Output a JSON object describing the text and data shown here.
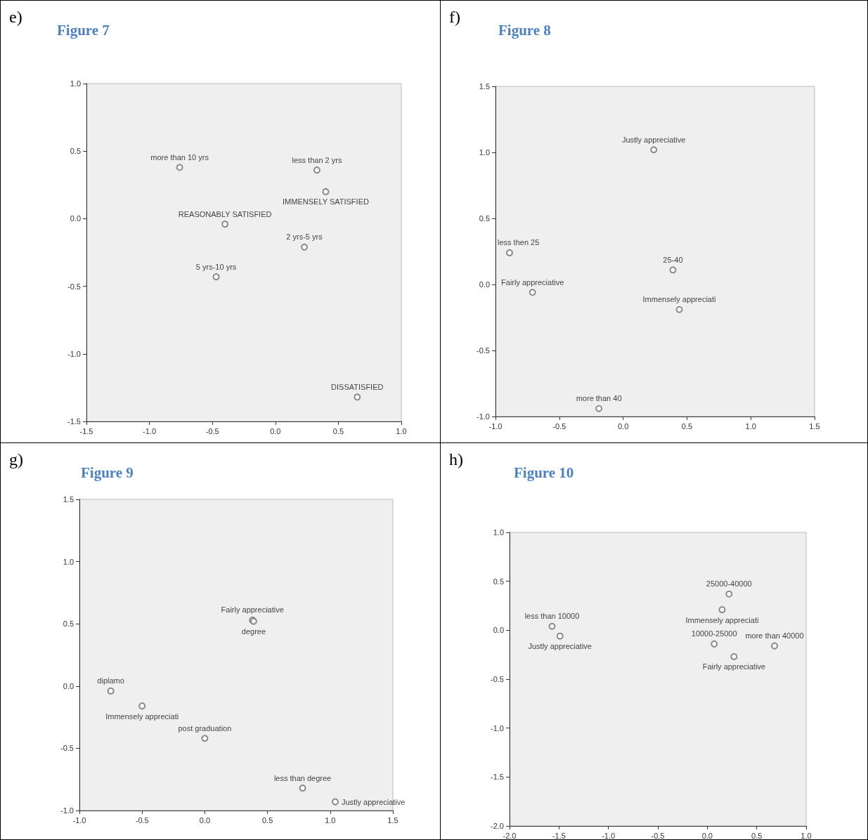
{
  "chart_data": [
    {
      "type": "scatter",
      "title": "Figure 7",
      "annotations": [
        "e)"
      ],
      "marker": "circle",
      "xlim": [
        -1.5,
        1.0
      ],
      "ylim": [
        -1.5,
        1.0
      ],
      "xticks": [
        {
          "value": -1.5,
          "label": "-1.5"
        },
        {
          "value": -1,
          "label": "-1.0"
        },
        {
          "value": -0.5,
          "label": "-0.5"
        },
        {
          "value": 0,
          "label": "0.0"
        },
        {
          "value": 0.5,
          "label": "0.5"
        },
        {
          "value": 1,
          "label": "1.0"
        }
      ],
      "yticks": [
        {
          "value": -1.5,
          "label": "-1.5"
        },
        {
          "value": -1,
          "label": "-1.0"
        },
        {
          "value": -0.5,
          "label": "-0.5"
        },
        {
          "value": 0,
          "label": "0.0"
        },
        {
          "value": 0.5,
          "label": "0.5"
        },
        {
          "value": 1,
          "label": "1.0"
        }
      ],
      "series": [
        {
          "name": "more than 10 yrs",
          "color": "#707070",
          "x": [
            -0.76
          ],
          "values": [
            0.38
          ]
        },
        {
          "name": "less than 2 yrs",
          "color": "#707070",
          "x": [
            0.33
          ],
          "values": [
            0.36
          ]
        },
        {
          "name": "IMMENSELY SATISFIED",
          "color": "#707070",
          "x": [
            0.4
          ],
          "values": [
            0.2
          ]
        },
        {
          "name": "REASONABLY SATISFIED",
          "color": "#707070",
          "x": [
            -0.4
          ],
          "values": [
            -0.04
          ]
        },
        {
          "name": "2 yrs-5 yrs",
          "color": "#707070",
          "x": [
            0.23
          ],
          "values": [
            -0.21
          ]
        },
        {
          "name": "5 yrs-10 yrs",
          "color": "#707070",
          "x": [
            -0.47
          ],
          "values": [
            -0.43
          ]
        },
        {
          "name": "DISSATISFIED",
          "color": "#707070",
          "x": [
            0.65
          ],
          "values": [
            -1.32
          ]
        }
      ]
    },
    {
      "type": "scatter",
      "title": "Figure 8",
      "annotations": [
        "f)"
      ],
      "marker": "circle",
      "xlim": [
        -1.0,
        1.5
      ],
      "ylim": [
        -1.0,
        1.5
      ],
      "xticks": [
        {
          "value": -1,
          "label": "-1.0"
        },
        {
          "value": -0.5,
          "label": "-0.5"
        },
        {
          "value": 0,
          "label": "0.0"
        },
        {
          "value": 0.5,
          "label": "0.5"
        },
        {
          "value": 1,
          "label": "1.0"
        },
        {
          "value": 1.5,
          "label": "1.5"
        }
      ],
      "yticks": [
        {
          "value": -1,
          "label": "-1.0"
        },
        {
          "value": -0.5,
          "label": "-0.5"
        },
        {
          "value": 0,
          "label": "0.0"
        },
        {
          "value": 0.5,
          "label": "0.5"
        },
        {
          "value": 1,
          "label": "1.0"
        },
        {
          "value": 1.5,
          "label": "1.5"
        }
      ],
      "series": [
        {
          "name": "Justly appreciative",
          "color": "#707070",
          "x": [
            0.24
          ],
          "values": [
            1.02
          ]
        },
        {
          "name": "less then 25",
          "color": "#707070",
          "x": [
            -0.89
          ],
          "values": [
            0.24
          ]
        },
        {
          "name": "25-40",
          "color": "#707070",
          "x": [
            0.39
          ],
          "values": [
            0.11
          ]
        },
        {
          "name": "Fairly appreciative",
          "color": "#707070",
          "x": [
            -0.71
          ],
          "values": [
            -0.06
          ]
        },
        {
          "name": "Immensely appreciati",
          "color": "#707070",
          "x": [
            0.44
          ],
          "values": [
            -0.19
          ]
        },
        {
          "name": "more than 40",
          "color": "#707070",
          "x": [
            -0.19
          ],
          "values": [
            -0.94
          ]
        }
      ]
    },
    {
      "type": "scatter",
      "title": "Figure 9",
      "annotations": [
        "g)"
      ],
      "marker": "circle",
      "xlim": [
        -1.0,
        1.5
      ],
      "ylim": [
        -1.0,
        1.5
      ],
      "xticks": [
        {
          "value": -1,
          "label": "-1.0"
        },
        {
          "value": -0.5,
          "label": "-0.5"
        },
        {
          "value": 0,
          "label": "0.0"
        },
        {
          "value": 0.5,
          "label": "0.5"
        },
        {
          "value": 1,
          "label": "1.0"
        },
        {
          "value": 1.5,
          "label": "1.5"
        }
      ],
      "yticks": [
        {
          "value": -1,
          "label": "-1.0"
        },
        {
          "value": -0.5,
          "label": "-0.5"
        },
        {
          "value": 0,
          "label": "0.0"
        },
        {
          "value": 0.5,
          "label": "0.5"
        },
        {
          "value": 1,
          "label": "1.0"
        },
        {
          "value": 1.5,
          "label": "1.5"
        }
      ],
      "series": [
        {
          "name": "Fairly appreciative",
          "color": "#707070",
          "x": [
            0.38
          ],
          "values": [
            0.53
          ]
        },
        {
          "name": "degree",
          "color": "#707070",
          "x": [
            0.39
          ],
          "values": [
            0.52
          ]
        },
        {
          "name": "diplamo",
          "color": "#707070",
          "x": [
            -0.75
          ],
          "values": [
            -0.04
          ]
        },
        {
          "name": "Immensely appreciati",
          "color": "#707070",
          "x": [
            -0.5
          ],
          "values": [
            -0.16
          ]
        },
        {
          "name": "post graduation",
          "color": "#707070",
          "x": [
            0.0
          ],
          "values": [
            -0.42
          ]
        },
        {
          "name": "less than degree",
          "color": "#707070",
          "x": [
            0.78
          ],
          "values": [
            -0.82
          ]
        },
        {
          "name": "Justly appreciative",
          "color": "#707070",
          "x": [
            1.04
          ],
          "values": [
            -0.93
          ]
        }
      ]
    },
    {
      "type": "scatter",
      "title": "Figure 10",
      "annotations": [
        "h)"
      ],
      "marker": "circle",
      "xlim": [
        -2.0,
        1.0
      ],
      "ylim": [
        -2.0,
        1.0
      ],
      "xticks": [
        {
          "value": -2,
          "label": "-2.0"
        },
        {
          "value": -1.5,
          "label": "-1.5"
        },
        {
          "value": -1,
          "label": "-1.0"
        },
        {
          "value": -0.5,
          "label": "-0.5"
        },
        {
          "value": 0,
          "label": "0.0"
        },
        {
          "value": 0.5,
          "label": "0.5"
        },
        {
          "value": 1,
          "label": "1.0"
        }
      ],
      "yticks": [
        {
          "value": -2,
          "label": "-2.0"
        },
        {
          "value": -1.5,
          "label": "-1.5"
        },
        {
          "value": -1,
          "label": "-1.0"
        },
        {
          "value": -0.5,
          "label": "-0.5"
        },
        {
          "value": 0,
          "label": "0.0"
        },
        {
          "value": 0.5,
          "label": "0.5"
        },
        {
          "value": 1,
          "label": "1.0"
        }
      ],
      "series": [
        {
          "name": "less than 10000",
          "color": "#707070",
          "x": [
            -1.57
          ],
          "values": [
            0.04
          ]
        },
        {
          "name": "Justly appreciative",
          "color": "#707070",
          "x": [
            -1.49
          ],
          "values": [
            -0.06
          ]
        },
        {
          "name": "25000-40000",
          "color": "#707070",
          "x": [
            0.22
          ],
          "values": [
            0.37
          ]
        },
        {
          "name": "Immensely appreciati",
          "color": "#707070",
          "x": [
            0.15
          ],
          "values": [
            0.21
          ]
        },
        {
          "name": "10000-25000",
          "color": "#707070",
          "x": [
            0.07
          ],
          "values": [
            -0.14
          ]
        },
        {
          "name": "Fairly appreciative",
          "color": "#707070",
          "x": [
            0.27
          ],
          "values": [
            -0.27
          ]
        },
        {
          "name": "more than 40000",
          "color": "#707070",
          "x": [
            0.68
          ],
          "values": [
            -0.16
          ]
        }
      ]
    }
  ]
}
